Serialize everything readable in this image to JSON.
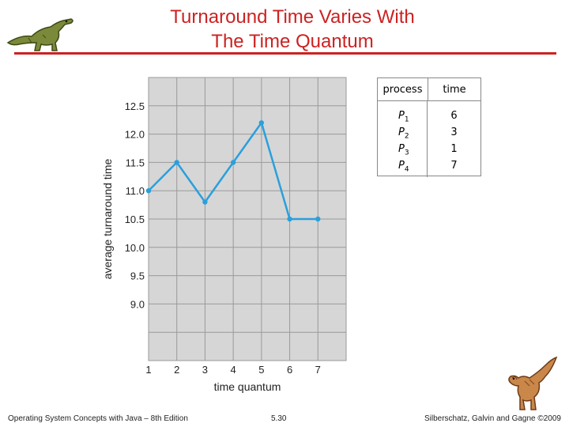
{
  "slide": {
    "title_line1": "Turnaround Time Varies With",
    "title_line2": "The Time Quantum",
    "accent_color": "#cc2222",
    "footer_left": "Operating System Concepts with Java – 8th Edition",
    "footer_center": "5.30",
    "footer_right": "Silberschatz, Galvin and Gagne ©2009"
  },
  "icons": [
    "dinosaur-logo-icon",
    "dinosaur-mascot-icon"
  ],
  "process_table": {
    "header_process": "process",
    "header_time": "time",
    "rows": [
      {
        "process": "P1",
        "time": "6"
      },
      {
        "process": "P2",
        "time": "3"
      },
      {
        "process": "P3",
        "time": "1"
      },
      {
        "process": "P4",
        "time": "7"
      }
    ]
  },
  "chart_data": {
    "type": "line",
    "title": "",
    "xlabel": "time quantum",
    "ylabel": "average turnaround time",
    "x": [
      1,
      2,
      3,
      4,
      5,
      6,
      7
    ],
    "y": [
      11.0,
      11.5,
      10.8,
      11.5,
      12.2,
      10.5,
      10.5
    ],
    "xticks": [
      "1",
      "2",
      "3",
      "4",
      "5",
      "6",
      "7"
    ],
    "yticks": [
      "9.0",
      "9.5",
      "10.0",
      "10.5",
      "11.0",
      "11.5",
      "12.0",
      "12.5"
    ],
    "xlim": [
      1,
      8
    ],
    "ylim": [
      8.0,
      13.0
    ],
    "grid": true,
    "line_color": "#2aa0dc",
    "plot_background": "#d6d6d6"
  }
}
